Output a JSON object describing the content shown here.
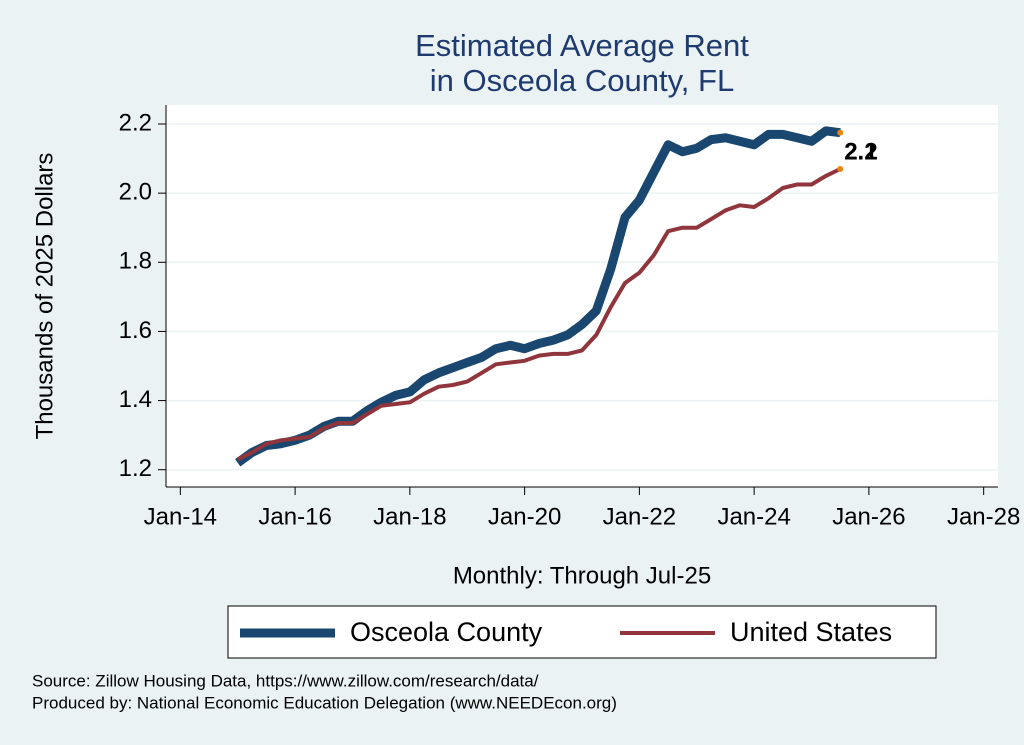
{
  "chart_data": {
    "type": "line",
    "title": [
      "Estimated Average Rent",
      "in Osceola County, FL"
    ],
    "x_label": "Monthly: Through Jul-25",
    "y_label": "Thousands of 2025 Dollars",
    "x": [
      "Jan-15",
      "Apr-15",
      "Jul-15",
      "Oct-15",
      "Jan-16",
      "Apr-16",
      "Jul-16",
      "Oct-16",
      "Jan-17",
      "Apr-17",
      "Jul-17",
      "Oct-17",
      "Jan-18",
      "Apr-18",
      "Jul-18",
      "Oct-18",
      "Jan-19",
      "Apr-19",
      "Jul-19",
      "Oct-19",
      "Jan-20",
      "Apr-20",
      "Jul-20",
      "Oct-20",
      "Jan-21",
      "Apr-21",
      "Jul-21",
      "Oct-21",
      "Jan-22",
      "Apr-22",
      "Jul-22",
      "Oct-22",
      "Jan-23",
      "Apr-23",
      "Jul-23",
      "Oct-23",
      "Jan-24",
      "Apr-24",
      "Jul-24",
      "Oct-24",
      "Jan-25",
      "Apr-25",
      "Jul-25"
    ],
    "series": [
      {
        "name": "Osceola County",
        "color": "#1a476f",
        "width": 9,
        "values": [
          1.22,
          1.25,
          1.27,
          1.275,
          1.285,
          1.3,
          1.325,
          1.34,
          1.34,
          1.37,
          1.395,
          1.415,
          1.425,
          1.46,
          1.48,
          1.495,
          1.51,
          1.525,
          1.55,
          1.56,
          1.55,
          1.565,
          1.575,
          1.59,
          1.62,
          1.66,
          1.78,
          1.93,
          1.98,
          2.06,
          2.14,
          2.12,
          2.13,
          2.155,
          2.16,
          2.15,
          2.14,
          2.17,
          2.17,
          2.16,
          2.15,
          2.18,
          2.175
        ],
        "value_labels": [
          null,
          null,
          null,
          null,
          null,
          null,
          null,
          null,
          null,
          null,
          null,
          null,
          null,
          null,
          null,
          null,
          null,
          null,
          null,
          null,
          null,
          null,
          null,
          null,
          null,
          null,
          null,
          null,
          null,
          null,
          null,
          null,
          null,
          null,
          null,
          null,
          null,
          null,
          null,
          null,
          null,
          null,
          "2.2"
        ]
      },
      {
        "name": "United States",
        "color": "#90353b",
        "width": 4,
        "values": [
          1.23,
          1.25,
          1.275,
          1.285,
          1.29,
          1.295,
          1.32,
          1.335,
          1.335,
          1.36,
          1.385,
          1.39,
          1.395,
          1.42,
          1.44,
          1.445,
          1.455,
          1.48,
          1.505,
          1.51,
          1.515,
          1.53,
          1.535,
          1.535,
          1.545,
          1.59,
          1.67,
          1.74,
          1.77,
          1.82,
          1.89,
          1.9,
          1.9,
          1.925,
          1.95,
          1.965,
          1.96,
          1.985,
          2.015,
          2.025,
          2.025,
          2.05,
          2.07
        ],
        "value_labels": [
          null,
          null,
          null,
          null,
          null,
          null,
          null,
          null,
          null,
          null,
          null,
          null,
          null,
          null,
          null,
          null,
          null,
          null,
          null,
          null,
          null,
          null,
          null,
          null,
          null,
          null,
          null,
          null,
          null,
          null,
          null,
          null,
          null,
          null,
          null,
          null,
          null,
          null,
          null,
          null,
          null,
          null,
          "2.1"
        ]
      }
    ],
    "xlim": [
      "Oct-13",
      "Apr-28"
    ],
    "xticks": [
      "Jan-14",
      "Jan-16",
      "Jan-18",
      "Jan-20",
      "Jan-22",
      "Jan-24",
      "Jan-26",
      "Jan-28"
    ],
    "ylim": [
      1.15,
      2.255
    ],
    "yticks": [
      1.2,
      1.4,
      1.6,
      1.8,
      {
        "value": 2,
        "label": "2.0"
      },
      2.2
    ],
    "grid": true,
    "legend": "bottom",
    "notes": [
      "Source: Zillow Housing Data, https://www.zillow.com/research/data/",
      "Produced by: National Economic Education Delegation (www.NEEDEcon.org)"
    ]
  }
}
